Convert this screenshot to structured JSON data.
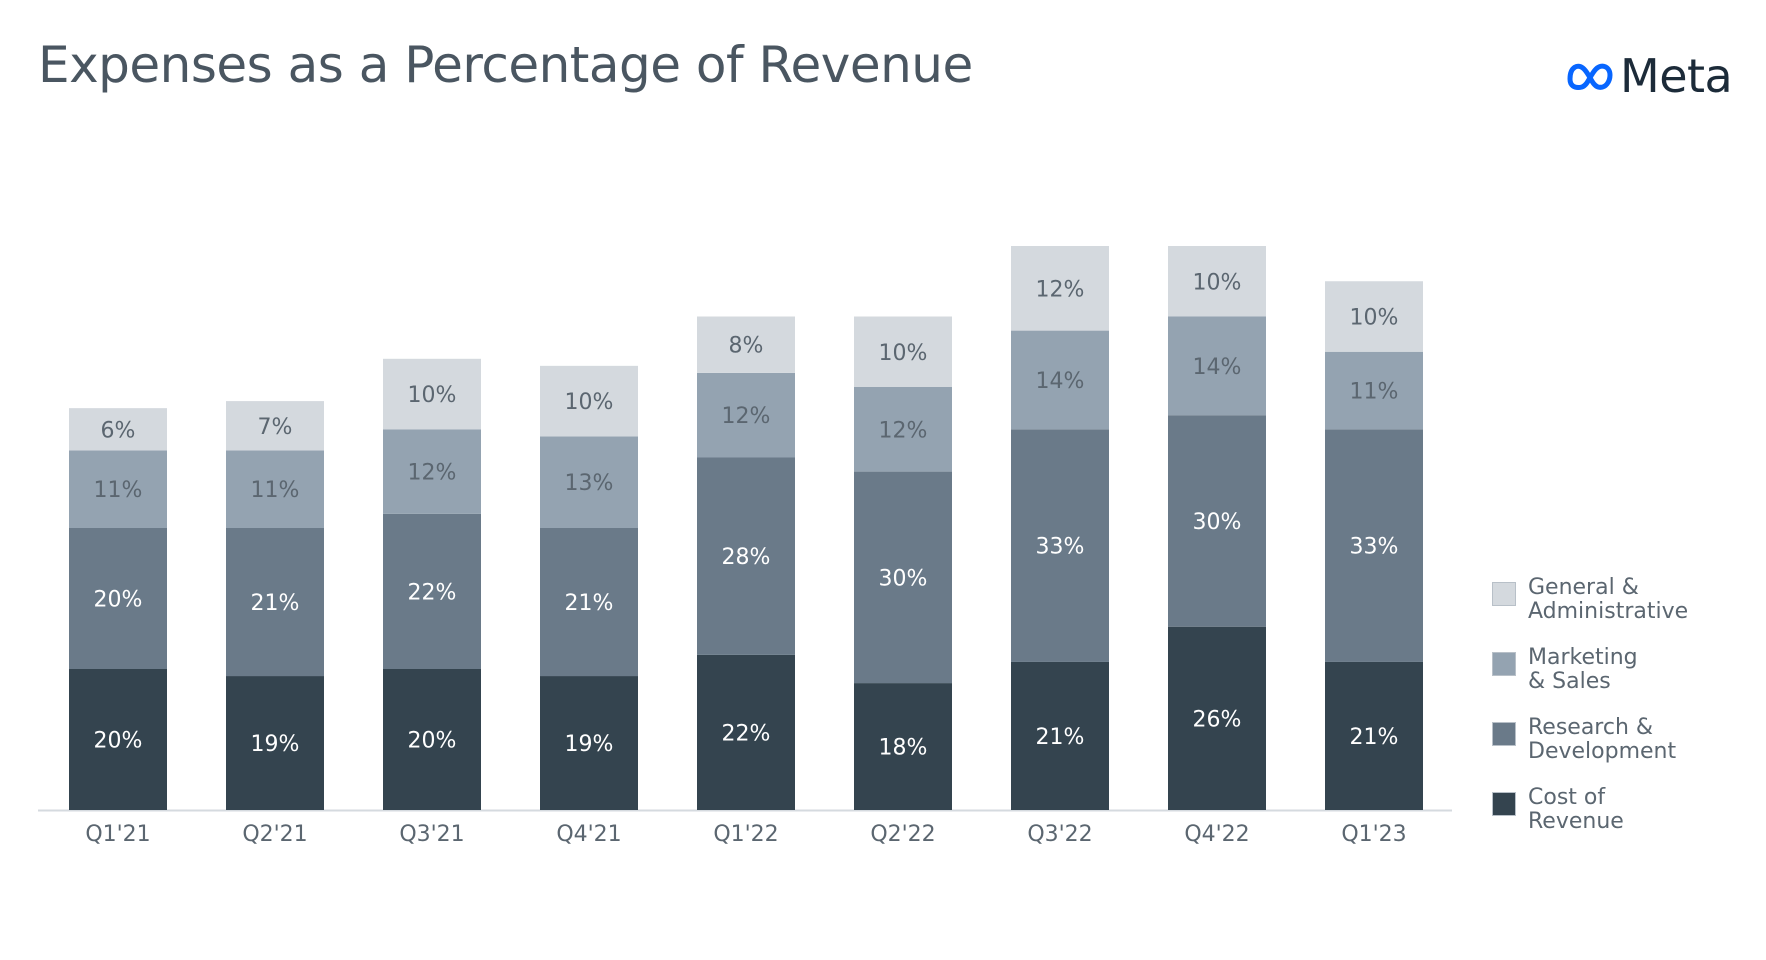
{
  "title": "Expenses as a Percentage of Revenue",
  "brand": {
    "name": "Meta",
    "logo_icon": "meta-infinity-logo",
    "logo_color": "#0866ff"
  },
  "chart_data": {
    "type": "bar",
    "stacked": true,
    "categories": [
      "Q1'21",
      "Q2'21",
      "Q3'21",
      "Q4'21",
      "Q1'22",
      "Q2'22",
      "Q3'22",
      "Q4'22",
      "Q1'23"
    ],
    "series": [
      {
        "name": "Cost of Revenue",
        "color": "#34444f",
        "values": [
          20,
          19,
          20,
          19,
          22,
          18,
          21,
          26,
          21
        ],
        "labels": [
          "20%",
          "19%",
          "20%",
          "19%",
          "22%",
          "18%",
          "21%",
          "26%",
          "21%"
        ]
      },
      {
        "name": "Research & Development",
        "color": "#6a7a89",
        "values": [
          20,
          21,
          22,
          21,
          28,
          30,
          33,
          30,
          33
        ],
        "labels": [
          "20%",
          "21%",
          "22%",
          "21%",
          "28%",
          "30%",
          "33%",
          "30%",
          "33%"
        ]
      },
      {
        "name": "Marketing & Sales",
        "color": "#94a3b1",
        "values": [
          11,
          11,
          12,
          13,
          12,
          12,
          14,
          14,
          11
        ],
        "labels": [
          "11%",
          "11%",
          "12%",
          "13%",
          "12%",
          "12%",
          "14%",
          "14%",
          "11%"
        ]
      },
      {
        "name": "General & Administrative",
        "color": "#d4d9de",
        "values": [
          6,
          7,
          10,
          10,
          8,
          10,
          12,
          10,
          10
        ],
        "labels": [
          "6%",
          "7%",
          "10%",
          "10%",
          "8%",
          "10%",
          "12%",
          "10%",
          "10%"
        ]
      }
    ],
    "legend": {
      "placement": "right",
      "order": [
        {
          "series": "General & Administrative",
          "label": "General &\nAdministrative"
        },
        {
          "series": "Marketing & Sales",
          "label": "Marketing\n& Sales"
        },
        {
          "series": "Research & Development",
          "label": "Research &\nDevelopment"
        },
        {
          "series": "Cost of Revenue",
          "label": "Cost of\nRevenue"
        }
      ]
    },
    "grid": false,
    "y_axis_visible": false,
    "label_colors": {
      "dark": "#ffffff",
      "light": "#5b6670"
    }
  }
}
